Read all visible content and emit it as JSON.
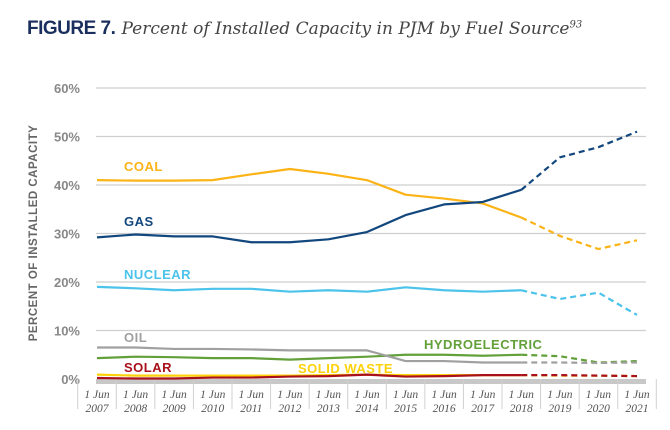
{
  "chart_data": {
    "type": "line",
    "title_prefix": "FIGURE 7.",
    "title": "Percent of Installed Capacity in PJM by Fuel Source",
    "title_footnote": "93",
    "ylabel": "PERCENT OF INSTALLED CAPACITY",
    "xlabel": "",
    "ylim": [
      0,
      60
    ],
    "yticks": [
      "0%",
      "10%",
      "20%",
      "30%",
      "40%",
      "50%",
      "60%"
    ],
    "grid": true,
    "x_prefix": "1 Jun",
    "x": [
      "2007",
      "2008",
      "2009",
      "2010",
      "2011",
      "2012",
      "2013",
      "2014",
      "2015",
      "2016",
      "2017",
      "2018",
      "2019",
      "2020",
      "2021"
    ],
    "projection_starts_at": "2018",
    "series": [
      {
        "name": "COAL",
        "color": "#fbb316",
        "values": [
          41,
          40.9,
          40.9,
          41,
          42.2,
          43.3,
          42.3,
          41,
          38,
          37.2,
          36.2,
          33.3,
          29.5,
          26.8,
          28.6
        ]
      },
      {
        "name": "GAS",
        "color": "#12477e",
        "values": [
          29.2,
          29.8,
          29.4,
          29.4,
          28.2,
          28.2,
          28.8,
          30.3,
          33.8,
          36,
          36.5,
          39,
          45.7,
          47.8,
          51
        ]
      },
      {
        "name": "NUCLEAR",
        "color": "#4cc3ea",
        "values": [
          19,
          18.7,
          18.3,
          18.6,
          18.6,
          18,
          18.3,
          18,
          18.9,
          18.3,
          18,
          18.3,
          16.5,
          17.8,
          13.2
        ]
      },
      {
        "name": "OIL",
        "color": "#a0a0a0",
        "values": [
          6.5,
          6.5,
          6.2,
          6.2,
          6.1,
          5.9,
          5.9,
          5.9,
          3.7,
          3.7,
          3.4,
          3.4,
          3.4,
          3.3,
          3.4
        ]
      },
      {
        "name": "HYDROELECTRIC",
        "color": "#62a03a",
        "values": [
          4.3,
          4.6,
          4.5,
          4.3,
          4.3,
          4.0,
          4.3,
          4.6,
          5.0,
          5.0,
          4.8,
          5.0,
          4.7,
          3.4,
          3.7
        ]
      },
      {
        "name": "SOLID WASTE",
        "color": "#fdd20a",
        "values": [
          0.9,
          0.7,
          0.7,
          0.7,
          0.7,
          0.7,
          0.8,
          0.9,
          0.8,
          0.8,
          0.8,
          0.8,
          0.7,
          0.7,
          0.6
        ]
      },
      {
        "name": "SOLAR",
        "color": "#a8101c",
        "values": [
          0.2,
          0.1,
          0.1,
          0.3,
          0.3,
          0.5,
          0.6,
          0.9,
          0.5,
          0.6,
          0.8,
          0.8,
          0.8,
          0.7,
          0.6
        ]
      }
    ]
  }
}
